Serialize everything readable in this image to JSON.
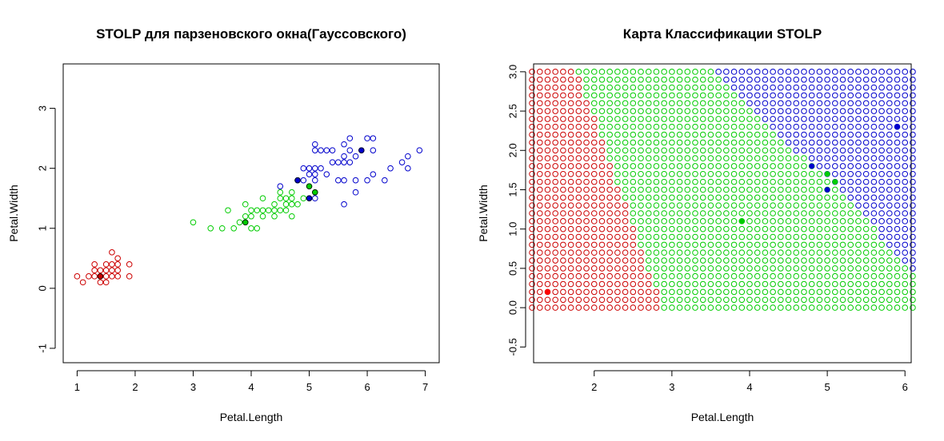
{
  "chart_data": [
    {
      "type": "scatter",
      "title": "STOLP для парзеновского окна(Гауссовского)",
      "xlabel": "Petal.Length",
      "ylabel": "Petal.Width",
      "xlim": [
        0.76,
        7.24
      ],
      "ylim": [
        -1.24,
        3.74
      ],
      "xticks": [
        "1",
        "2",
        "3",
        "4",
        "5",
        "6",
        "7"
      ],
      "yticks": [
        "-1",
        "0",
        "1",
        "2",
        "3"
      ],
      "grid": false,
      "series": [
        {
          "color": "#cc0000",
          "points": [
            [
              1.0,
              0.2
            ],
            [
              1.1,
              0.1
            ],
            [
              1.2,
              0.2
            ],
            [
              1.3,
              0.2
            ],
            [
              1.3,
              0.3
            ],
            [
              1.3,
              0.4
            ],
            [
              1.4,
              0.1
            ],
            [
              1.4,
              0.2
            ],
            [
              1.4,
              0.3
            ],
            [
              1.5,
              0.1
            ],
            [
              1.5,
              0.2
            ],
            [
              1.5,
              0.3
            ],
            [
              1.5,
              0.4
            ],
            [
              1.6,
              0.2
            ],
            [
              1.6,
              0.4
            ],
            [
              1.6,
              0.6
            ],
            [
              1.6,
              0.3
            ],
            [
              1.7,
              0.2
            ],
            [
              1.7,
              0.3
            ],
            [
              1.7,
              0.4
            ],
            [
              1.7,
              0.5
            ],
            [
              1.9,
              0.2
            ],
            [
              1.9,
              0.4
            ]
          ],
          "stolp": [
            [
              1.4,
              0.2
            ]
          ]
        },
        {
          "color": "#00cc00",
          "points": [
            [
              3.0,
              1.1
            ],
            [
              3.3,
              1.0
            ],
            [
              3.5,
              1.0
            ],
            [
              3.6,
              1.3
            ],
            [
              3.7,
              1.0
            ],
            [
              3.8,
              1.1
            ],
            [
              3.9,
              1.1
            ],
            [
              3.9,
              1.2
            ],
            [
              3.9,
              1.4
            ],
            [
              4.0,
              1.0
            ],
            [
              4.0,
              1.2
            ],
            [
              4.0,
              1.3
            ],
            [
              4.1,
              1.0
            ],
            [
              4.1,
              1.3
            ],
            [
              4.2,
              1.2
            ],
            [
              4.2,
              1.3
            ],
            [
              4.2,
              1.5
            ],
            [
              4.3,
              1.3
            ],
            [
              4.4,
              1.2
            ],
            [
              4.4,
              1.3
            ],
            [
              4.4,
              1.4
            ],
            [
              4.5,
              1.3
            ],
            [
              4.5,
              1.5
            ],
            [
              4.5,
              1.6
            ],
            [
              4.6,
              1.3
            ],
            [
              4.6,
              1.4
            ],
            [
              4.6,
              1.5
            ],
            [
              4.7,
              1.2
            ],
            [
              4.7,
              1.4
            ],
            [
              4.7,
              1.5
            ],
            [
              4.7,
              1.6
            ],
            [
              4.8,
              1.4
            ],
            [
              4.8,
              1.8
            ],
            [
              4.9,
              1.5
            ],
            [
              5.0,
              1.7
            ],
            [
              5.1,
              1.6
            ]
          ],
          "stolp": [
            [
              3.9,
              1.1
            ],
            [
              5.0,
              1.7
            ],
            [
              5.1,
              1.6
            ]
          ]
        },
        {
          "color": "#0000cc",
          "points": [
            [
              4.5,
              1.7
            ],
            [
              4.8,
              1.8
            ],
            [
              4.9,
              1.8
            ],
            [
              4.9,
              2.0
            ],
            [
              5.0,
              1.5
            ],
            [
              5.0,
              1.9
            ],
            [
              5.0,
              2.0
            ],
            [
              5.1,
              1.5
            ],
            [
              5.1,
              1.8
            ],
            [
              5.1,
              1.9
            ],
            [
              5.1,
              2.0
            ],
            [
              5.1,
              2.3
            ],
            [
              5.1,
              2.4
            ],
            [
              5.2,
              2.0
            ],
            [
              5.2,
              2.3
            ],
            [
              5.3,
              1.9
            ],
            [
              5.3,
              2.3
            ],
            [
              5.4,
              2.1
            ],
            [
              5.4,
              2.3
            ],
            [
              5.5,
              1.8
            ],
            [
              5.5,
              2.1
            ],
            [
              5.6,
              1.4
            ],
            [
              5.6,
              1.8
            ],
            [
              5.6,
              2.1
            ],
            [
              5.6,
              2.2
            ],
            [
              5.6,
              2.4
            ],
            [
              5.7,
              2.1
            ],
            [
              5.7,
              2.3
            ],
            [
              5.7,
              2.5
            ],
            [
              5.8,
              1.6
            ],
            [
              5.8,
              1.8
            ],
            [
              5.8,
              2.2
            ],
            [
              5.9,
              2.3
            ],
            [
              6.0,
              1.8
            ],
            [
              6.0,
              2.5
            ],
            [
              6.1,
              1.9
            ],
            [
              6.1,
              2.3
            ],
            [
              6.1,
              2.5
            ],
            [
              6.3,
              1.8
            ],
            [
              6.4,
              2.0
            ],
            [
              6.6,
              2.1
            ],
            [
              6.7,
              2.0
            ],
            [
              6.7,
              2.2
            ],
            [
              6.9,
              2.3
            ]
          ],
          "stolp": [
            [
              4.8,
              1.8
            ],
            [
              5.0,
              1.5
            ],
            [
              5.9,
              2.3
            ]
          ]
        }
      ]
    },
    {
      "type": "scatter",
      "title": "Карта Классификации STOLP",
      "xlabel": "Petal.Length",
      "ylabel": "Petal.Width",
      "xlim": [
        1.22,
        6.08
      ],
      "ylim": [
        -0.7,
        3.1
      ],
      "xticks": [
        "2",
        "3",
        "4",
        "5",
        "6"
      ],
      "yticks": [
        "-0.5",
        "0.0",
        "0.5",
        "1.0",
        "1.5",
        "2.0",
        "2.5",
        "3.0"
      ],
      "grid": false,
      "classification_grid": {
        "x_from": 1.2,
        "x_to": 6.1,
        "x_step": 0.1,
        "y_from": 0.0,
        "y_to": 3.0,
        "y_step": 0.1,
        "colors": [
          "#cc0000",
          "#00cc00",
          "#0000cc"
        ]
      },
      "stolp": [
        {
          "x": 1.4,
          "y": 0.2,
          "color": "#ff0000"
        },
        {
          "x": 3.9,
          "y": 1.1,
          "color": "#00cc00"
        },
        {
          "x": 5.0,
          "y": 1.7,
          "color": "#00cc00"
        },
        {
          "x": 5.1,
          "y": 1.6,
          "color": "#00cc00"
        },
        {
          "x": 4.8,
          "y": 1.8,
          "color": "#0000cc"
        },
        {
          "x": 5.0,
          "y": 1.5,
          "color": "#0000cc"
        },
        {
          "x": 5.9,
          "y": 2.3,
          "color": "#0000cc"
        }
      ]
    }
  ]
}
